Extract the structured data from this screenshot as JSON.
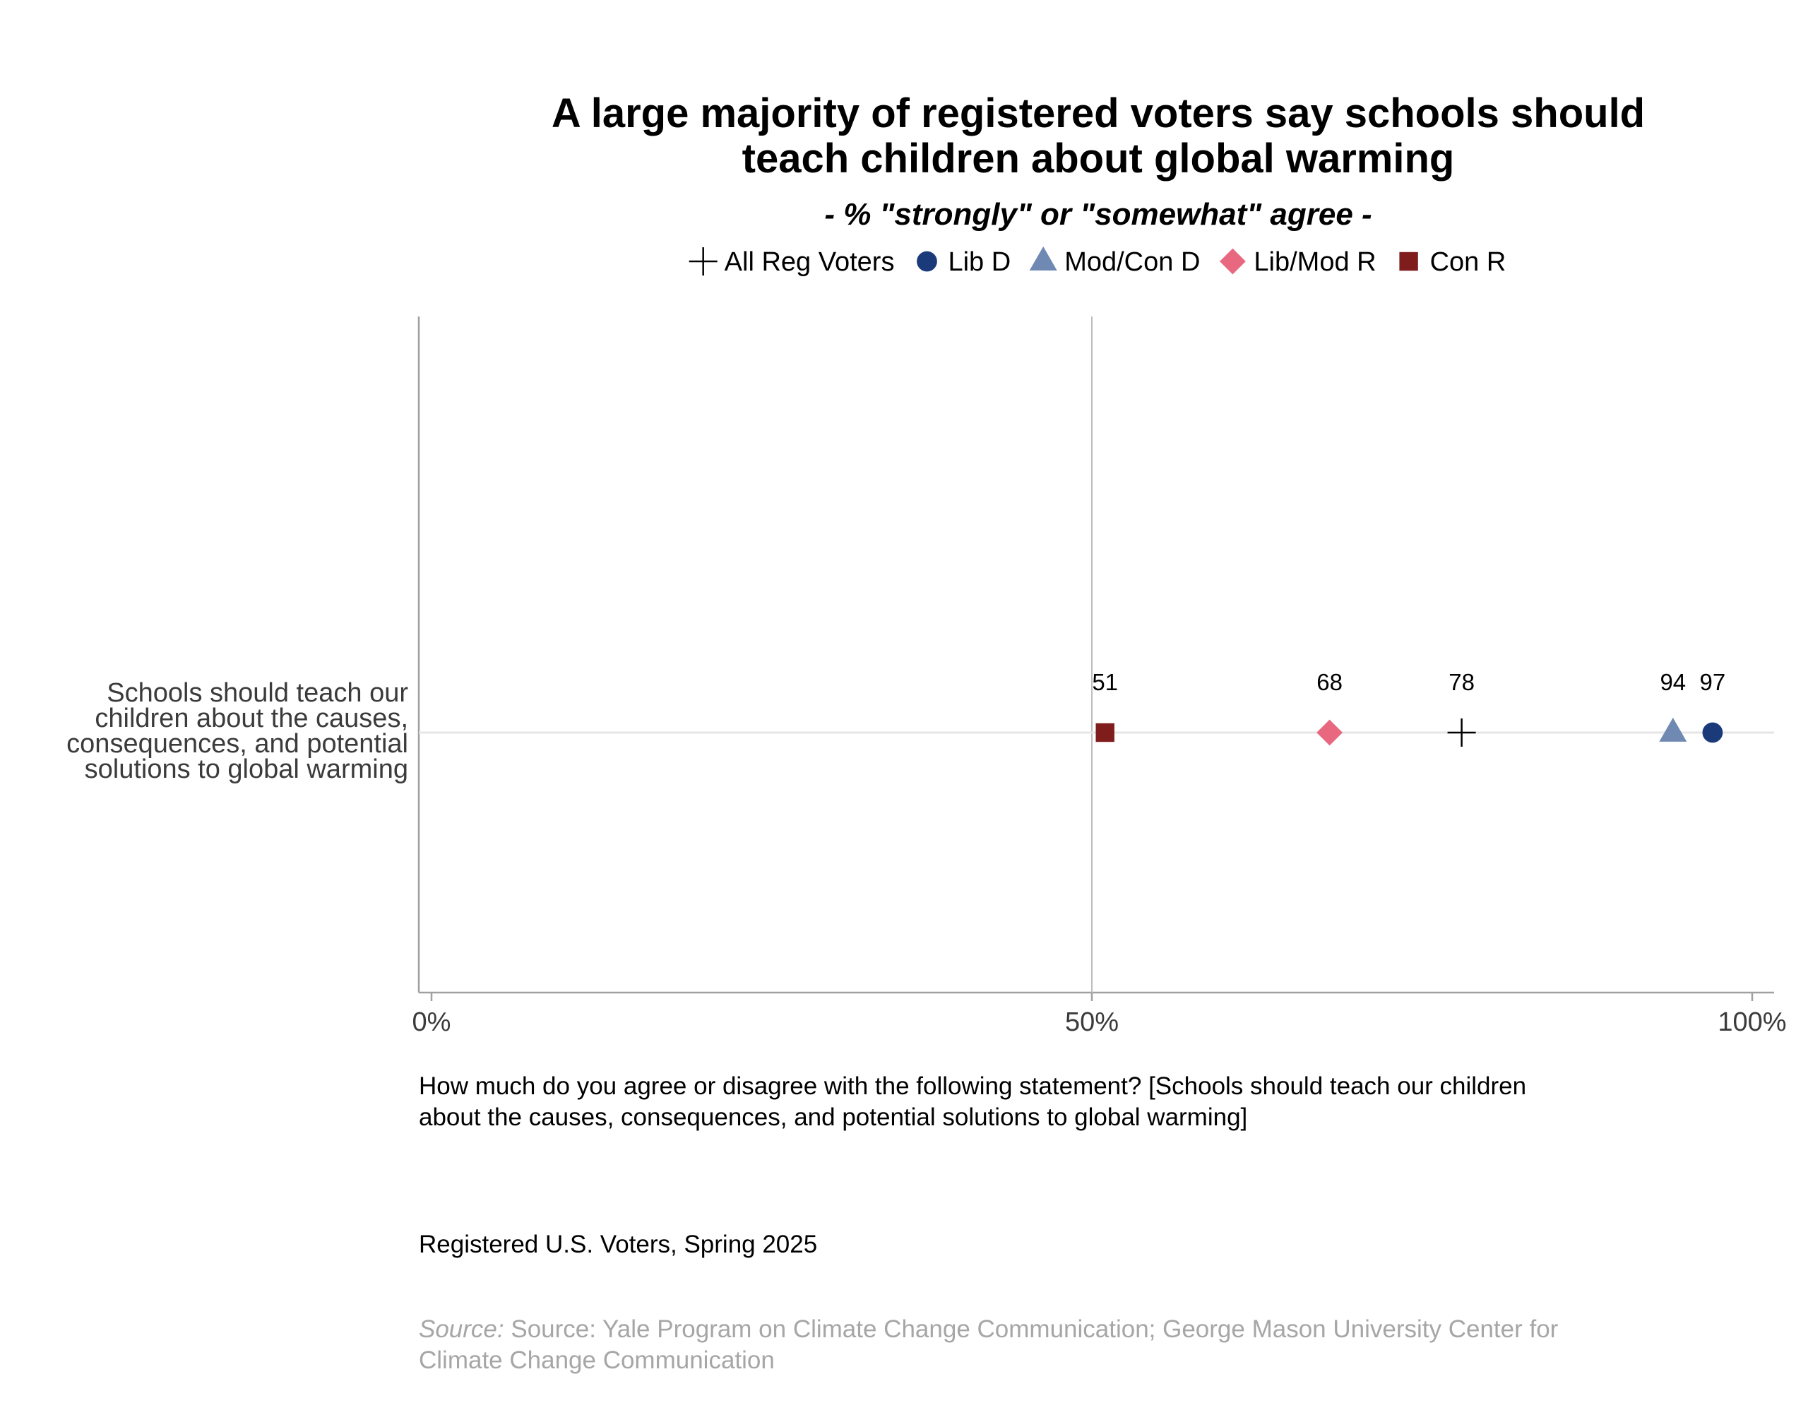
{
  "chart_data": {
    "type": "scatter",
    "title_lines": [
      "A large majority of registered voters say schools should",
      "teach children about global warming"
    ],
    "subtitle": "- % \"strongly\" or \"somewhat\" agree -",
    "legend_position": "top",
    "legend": [
      {
        "name": "All Reg Voters",
        "marker": "plus",
        "color": "#000000"
      },
      {
        "name": "Lib D",
        "marker": "circle",
        "color": "#1a3a7a"
      },
      {
        "name": "Mod/Con D",
        "marker": "triangle",
        "color": "#7089b2"
      },
      {
        "name": "Lib/Mod R",
        "marker": "diamond",
        "color": "#e8697f"
      },
      {
        "name": "Con R",
        "marker": "square",
        "color": "#7f1d1d"
      }
    ],
    "categories": [
      {
        "label_lines": [
          "Schools should teach our",
          "children about the causes,",
          "consequences, and potential",
          "solutions to global warming"
        ]
      }
    ],
    "series": [
      {
        "name": "Con R",
        "values": [
          51
        ],
        "labels": [
          "51"
        ]
      },
      {
        "name": "Lib/Mod R",
        "values": [
          68
        ],
        "labels": [
          "68"
        ]
      },
      {
        "name": "All Reg Voters",
        "values": [
          78
        ],
        "labels": [
          "78"
        ]
      },
      {
        "name": "Mod/Con D",
        "values": [
          94
        ],
        "labels": [
          "94"
        ]
      },
      {
        "name": "Lib D",
        "values": [
          97
        ],
        "labels": [
          "97"
        ]
      }
    ],
    "xlim": [
      0,
      100
    ],
    "x_ticks": [
      0,
      50,
      100
    ],
    "x_tick_labels": [
      "0%",
      "50%",
      "100%"
    ],
    "reference_line_at": 50,
    "grid": false
  },
  "footnotes": {
    "question_lines": [
      "How much do you agree or disagree with the following statement? [Schools should teach our children",
      "about the causes, consequences, and potential solutions to global warming]"
    ],
    "sample": "Registered U.S. Voters, Spring 2025",
    "source_prefix": "Source:",
    "source_lines": [
      " Source: Yale Program on Climate Change Communication; George Mason University Center for",
      "Climate Change Communication"
    ]
  }
}
